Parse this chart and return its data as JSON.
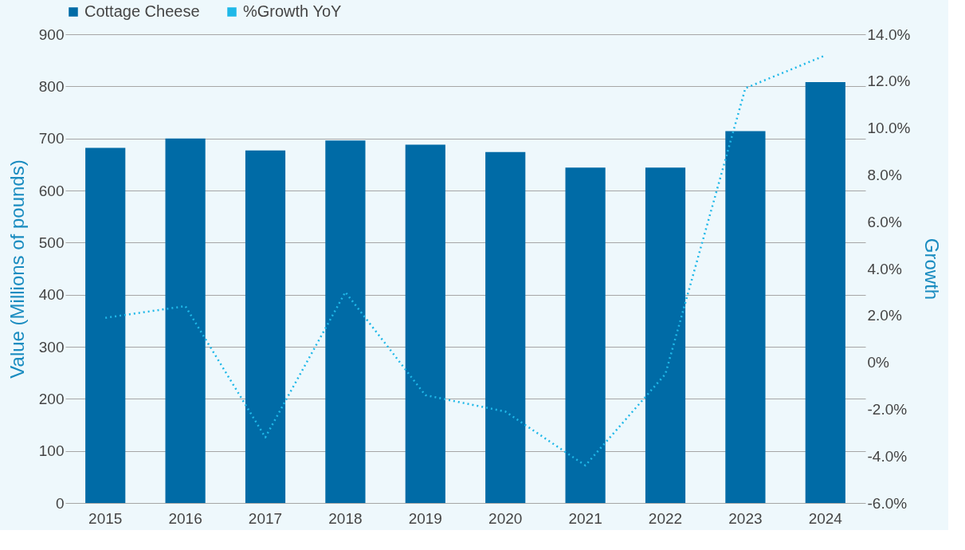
{
  "chart_data": {
    "type": "bar",
    "categories": [
      "2015",
      "2016",
      "2017",
      "2018",
      "2019",
      "2020",
      "2021",
      "2022",
      "2023",
      "2024"
    ],
    "series": [
      {
        "name": "Cottage Cheese",
        "color": "#006ba6",
        "values": [
          682,
          700,
          677,
          696,
          688,
          674,
          644,
          644,
          714,
          808
        ]
      },
      {
        "name": "%Growth YoY",
        "type": "line",
        "axis": "y2",
        "color": "#1fb8e8",
        "line_style": "dotted",
        "values": [
          1.9,
          2.4,
          -3.2,
          3.0,
          -1.4,
          -2.1,
          -4.4,
          -0.5,
          11.7,
          13.1
        ]
      }
    ],
    "ylabel": "Value (Millions of pounds)",
    "y2label": "Growth",
    "ylim": [
      0,
      900
    ],
    "yticks": [
      0,
      100,
      200,
      300,
      400,
      500,
      600,
      700,
      800,
      900
    ],
    "y2lim": [
      -6,
      14
    ],
    "y2ticks": [
      {
        "value": -6,
        "label": "-6.0%"
      },
      {
        "value": -4,
        "label": "-4.0%"
      },
      {
        "value": -2,
        "label": "-2.0%"
      },
      {
        "value": 0,
        "label": "0%"
      },
      {
        "value": 2,
        "label": "2.0%"
      },
      {
        "value": 4,
        "label": "4.0%"
      },
      {
        "value": 6,
        "label": "6.0%"
      },
      {
        "value": 8,
        "label": "8.0%"
      },
      {
        "value": 10,
        "label": "10.0%"
      },
      {
        "value": 12,
        "label": "12.0%"
      },
      {
        "value": 14,
        "label": "14.0%"
      }
    ],
    "grid": "y",
    "legend": "top",
    "marker": "none"
  }
}
